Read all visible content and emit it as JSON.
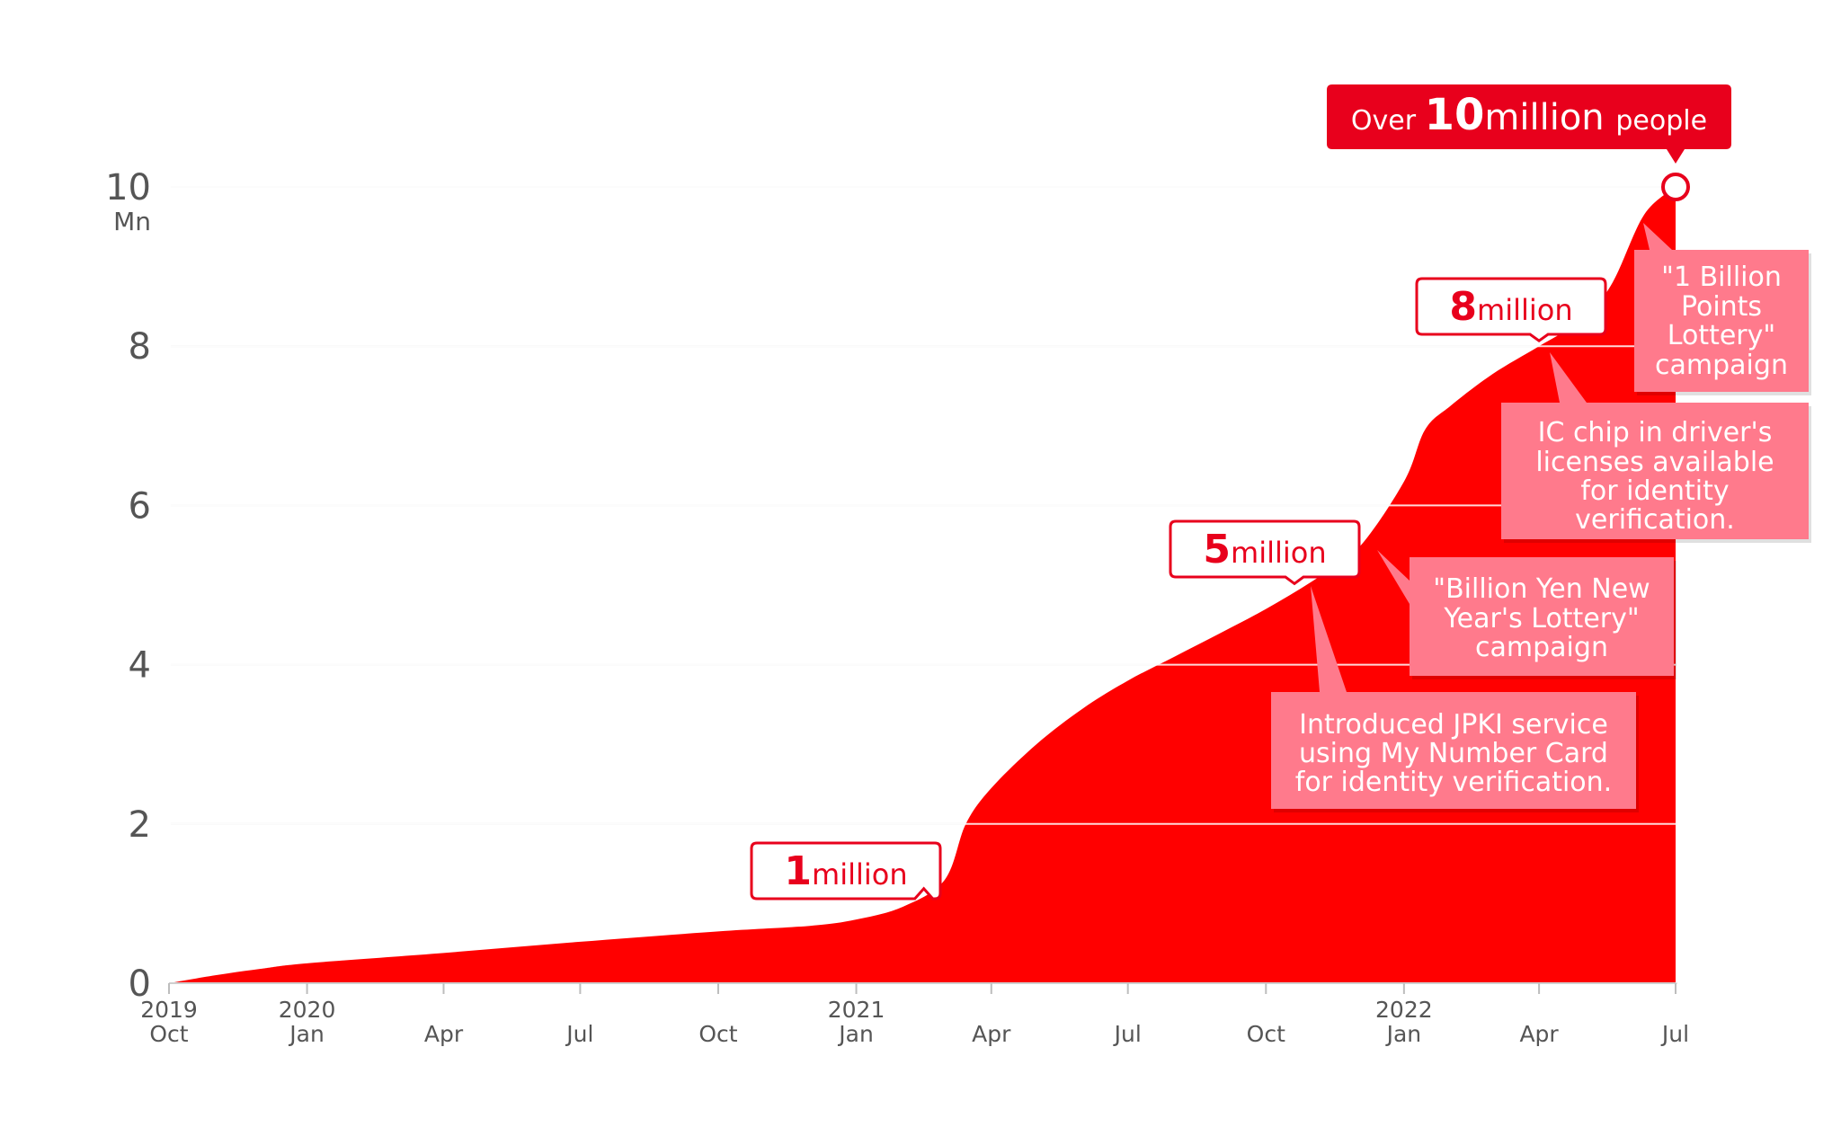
{
  "chart_data": {
    "type": "area",
    "y_unit": "Mn",
    "ylim": [
      0,
      10
    ],
    "y_ticks": [
      {
        "value": 0,
        "label": "0"
      },
      {
        "value": 2,
        "label": "2"
      },
      {
        "value": 4,
        "label": "4"
      },
      {
        "value": 6,
        "label": "6"
      },
      {
        "value": 8,
        "label": "8"
      },
      {
        "value": 10,
        "label": "10"
      }
    ],
    "x_ticks": [
      {
        "date": "2019-10-01",
        "month": "Oct",
        "year": "2019"
      },
      {
        "date": "2020-01-01",
        "month": "Jan",
        "year": "2020"
      },
      {
        "date": "2020-04-01",
        "month": "Apr",
        "year": ""
      },
      {
        "date": "2020-07-01",
        "month": "Jul",
        "year": ""
      },
      {
        "date": "2020-10-01",
        "month": "Oct",
        "year": ""
      },
      {
        "date": "2021-01-01",
        "month": "Jan",
        "year": "2021"
      },
      {
        "date": "2021-04-01",
        "month": "Apr",
        "year": ""
      },
      {
        "date": "2021-07-01",
        "month": "Jul",
        "year": ""
      },
      {
        "date": "2021-10-01",
        "month": "Oct",
        "year": ""
      },
      {
        "date": "2022-01-01",
        "month": "Jan",
        "year": "2022"
      },
      {
        "date": "2022-04-01",
        "month": "Apr",
        "year": ""
      },
      {
        "date": "2022-07-01",
        "month": "Jul",
        "year": ""
      }
    ],
    "grid": true,
    "color": "#ff0000",
    "series": [
      {
        "points": [
          {
            "x": "2019-10-01",
            "y": 0.0
          },
          {
            "x": "2019-11-01",
            "y": 0.1
          },
          {
            "x": "2019-12-01",
            "y": 0.18
          },
          {
            "x": "2020-01-01",
            "y": 0.25
          },
          {
            "x": "2020-04-01",
            "y": 0.38
          },
          {
            "x": "2020-07-01",
            "y": 0.52
          },
          {
            "x": "2020-10-01",
            "y": 0.65
          },
          {
            "x": "2020-12-01",
            "y": 0.72
          },
          {
            "x": "2021-01-01",
            "y": 0.8
          },
          {
            "x": "2021-02-01",
            "y": 0.96
          },
          {
            "x": "2021-03-01",
            "y": 1.3
          },
          {
            "x": "2021-03-15",
            "y": 2.0
          },
          {
            "x": "2021-04-01",
            "y": 2.45
          },
          {
            "x": "2021-05-01",
            "y": 3.0
          },
          {
            "x": "2021-06-01",
            "y": 3.45
          },
          {
            "x": "2021-07-01",
            "y": 3.8
          },
          {
            "x": "2021-08-01",
            "y": 4.1
          },
          {
            "x": "2021-09-01",
            "y": 4.4
          },
          {
            "x": "2021-10-01",
            "y": 4.7
          },
          {
            "x": "2021-11-01",
            "y": 5.05
          },
          {
            "x": "2021-12-01",
            "y": 5.45
          },
          {
            "x": "2022-01-01",
            "y": 6.3
          },
          {
            "x": "2022-01-15",
            "y": 6.95
          },
          {
            "x": "2022-02-01",
            "y": 7.25
          },
          {
            "x": "2022-03-01",
            "y": 7.65
          },
          {
            "x": "2022-04-01",
            "y": 8.0
          },
          {
            "x": "2022-05-01",
            "y": 8.35
          },
          {
            "x": "2022-05-20",
            "y": 8.8
          },
          {
            "x": "2022-06-10",
            "y": 9.65
          },
          {
            "x": "2022-07-01",
            "y": 10.0
          }
        ]
      }
    ],
    "milestones": [
      {
        "x": "2021-02-15",
        "y": 1.12,
        "number": "1",
        "text": "million"
      },
      {
        "x": "2021-10-20",
        "y": 4.95,
        "number": "5",
        "text": "million"
      },
      {
        "x": "2022-04-01",
        "y": 8.0,
        "number": "8",
        "text": "million"
      }
    ],
    "headline": {
      "prefix": "Over",
      "number": "10",
      "middle": "million",
      "suffix": "people"
    },
    "annotations": [
      {
        "text": [
          "Introduced JPKI service",
          "using My Number Card",
          "for identity verification."
        ]
      },
      {
        "text": [
          "\"Billion Yen New",
          "Year's Lottery\"",
          "campaign"
        ]
      },
      {
        "text": [
          "IC chip in driver's",
          "licenses available",
          "for identity",
          "verification."
        ]
      },
      {
        "text": [
          "\"1 Billion",
          "Points",
          "Lottery\"",
          "campaign"
        ]
      }
    ]
  }
}
